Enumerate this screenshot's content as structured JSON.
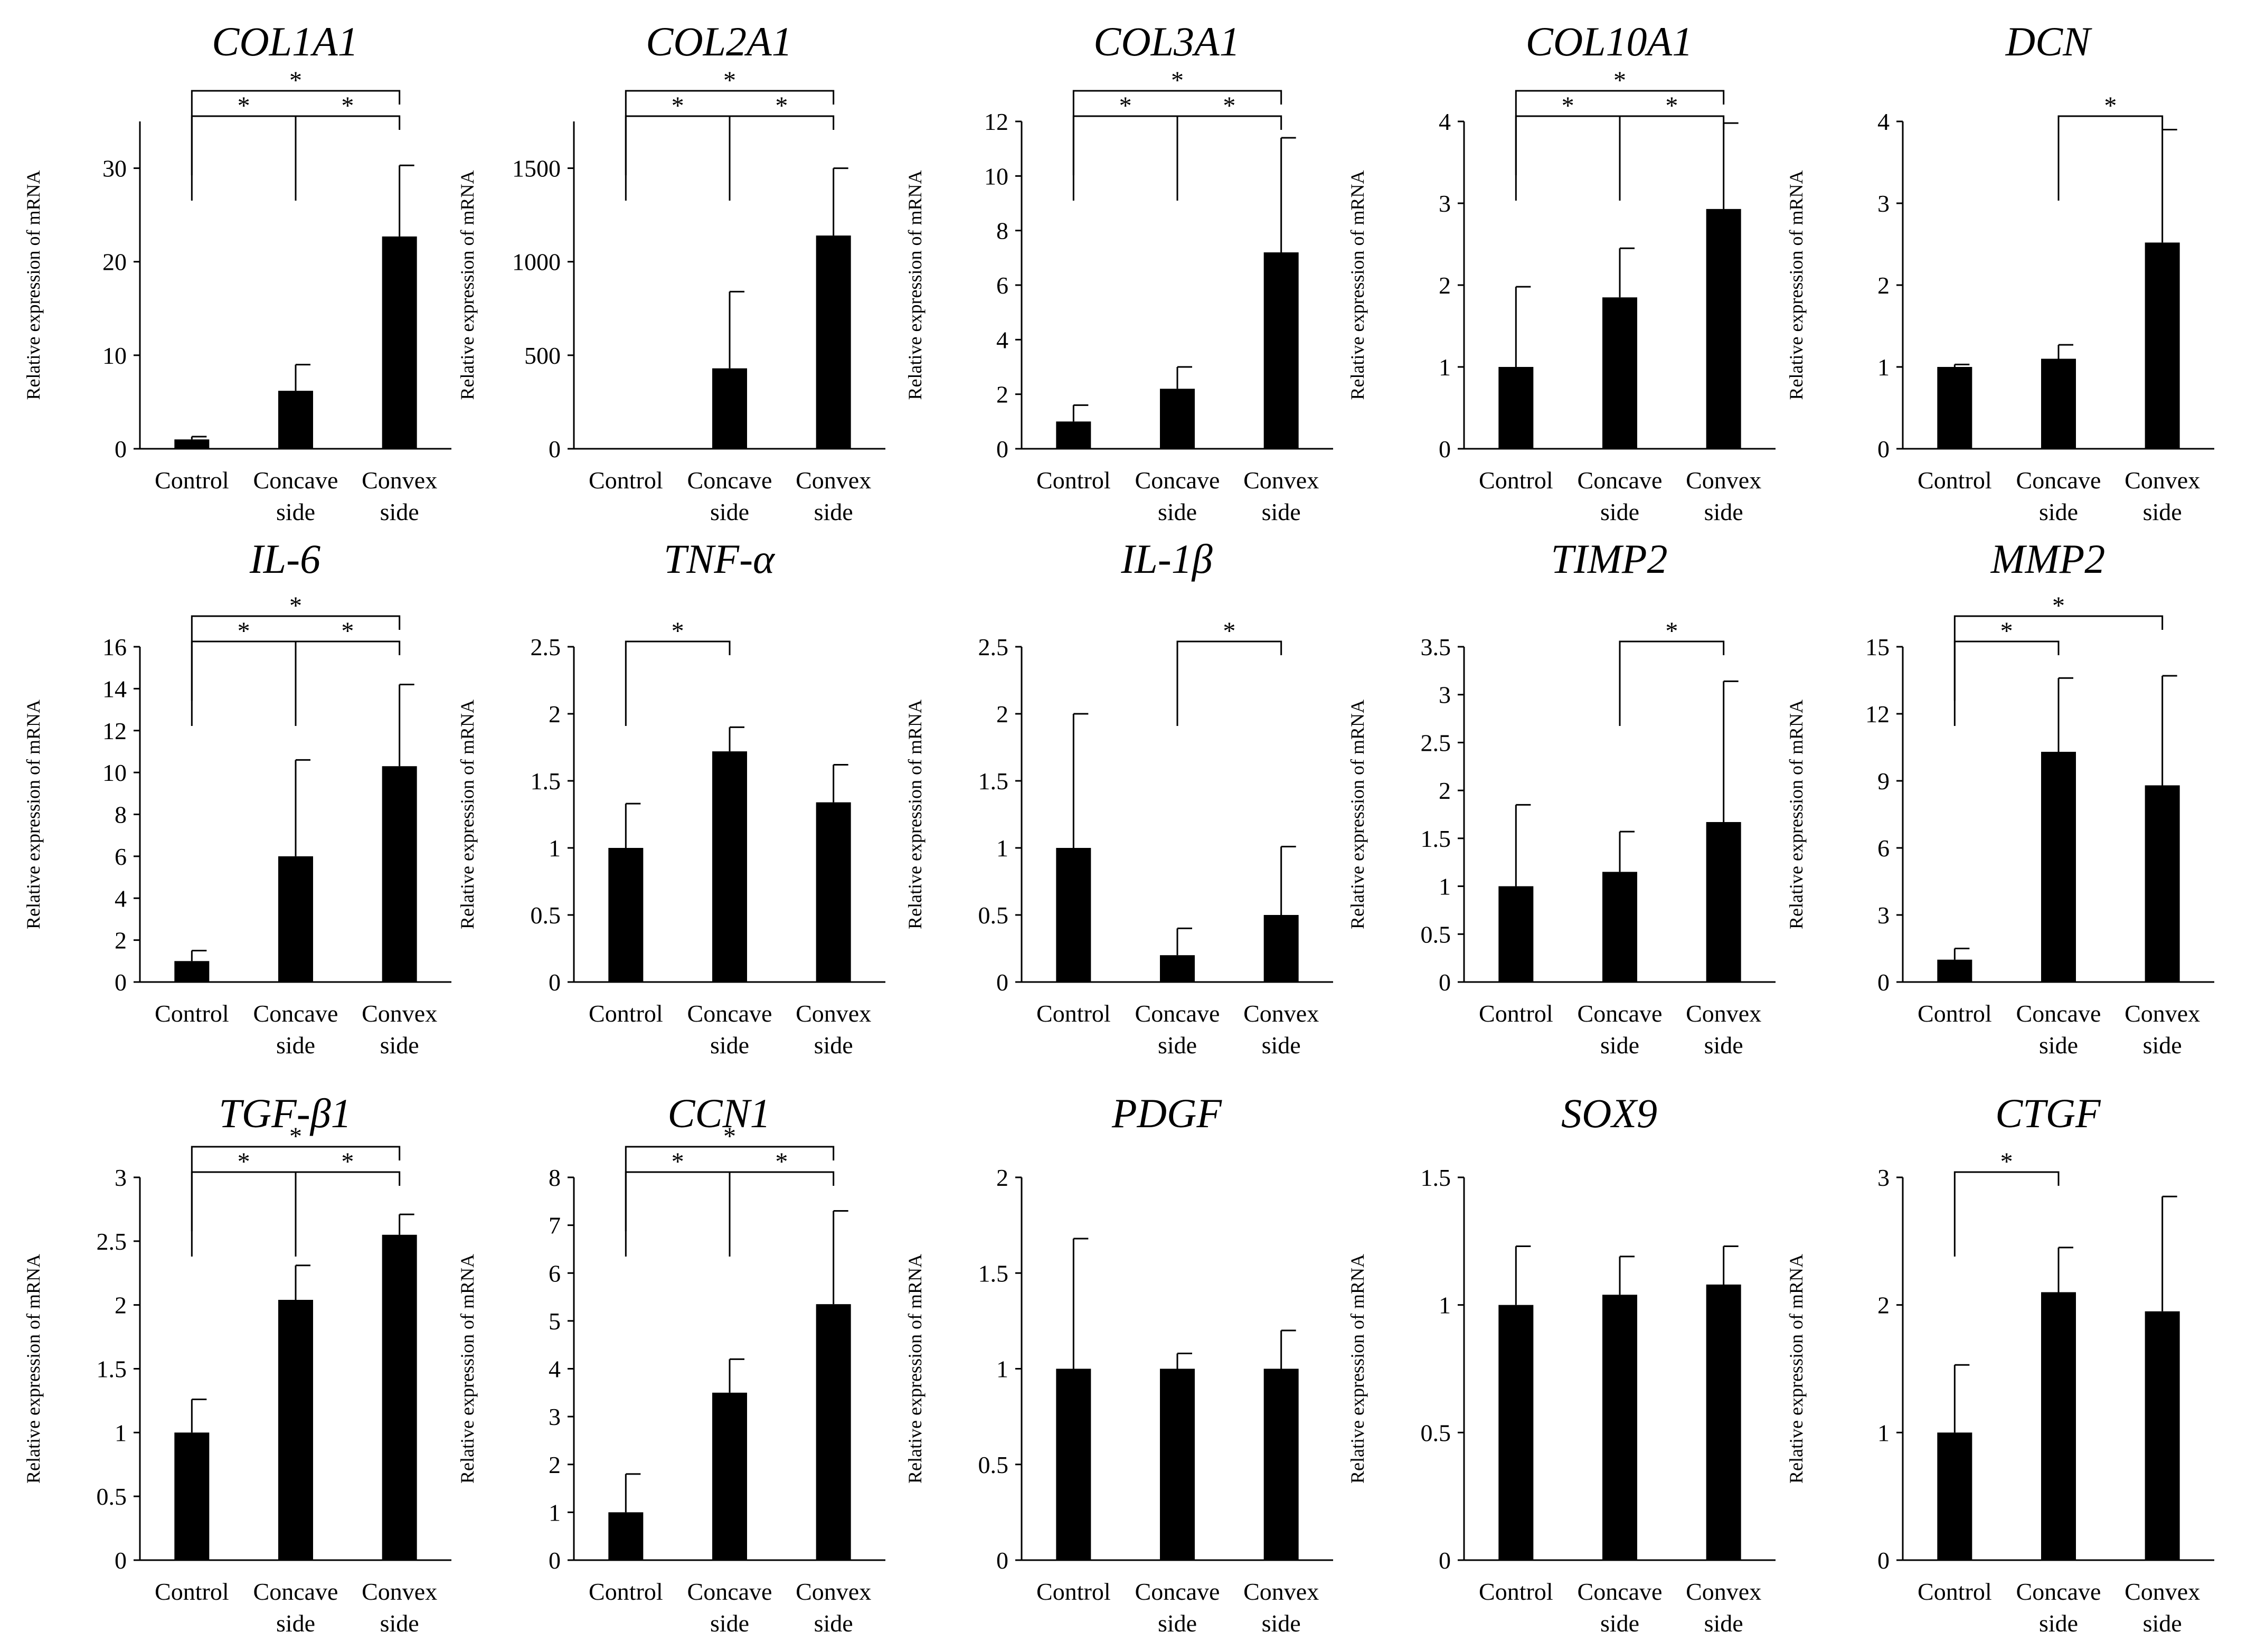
{
  "figure": {
    "ylabel": "Relative expression of mRNA",
    "categories": [
      [
        "Control"
      ],
      [
        "Concave",
        "side"
      ],
      [
        "Convex",
        "side"
      ]
    ]
  },
  "chart_data": [
    {
      "type": "bar",
      "title": "COL1A1",
      "categories": [
        "Control",
        "Concave side",
        "Convex side"
      ],
      "values": [
        1,
        6.2,
        22.7
      ],
      "errors": [
        0.3,
        2.8,
        7.6
      ],
      "ylim": [
        0,
        35
      ],
      "yticks": [
        0,
        10,
        20,
        30
      ],
      "ylabel": "Relative expression of mRNA",
      "significance": [
        {
          "from": 0,
          "to": 1,
          "label": "*"
        },
        {
          "from": 1,
          "to": 2,
          "label": "*"
        },
        {
          "from": 0,
          "to": 2,
          "label": "*"
        }
      ]
    },
    {
      "type": "bar",
      "title": "COL2A1",
      "categories": [
        "Control",
        "Concave side",
        "Convex side"
      ],
      "values": [
        1,
        430,
        1140
      ],
      "errors": [
        0,
        410,
        360
      ],
      "ylim": [
        0,
        1750
      ],
      "yticks": [
        0,
        500,
        1000,
        1500
      ],
      "ylabel": "Relative expression of mRNA",
      "significance": [
        {
          "from": 0,
          "to": 1,
          "label": "*"
        },
        {
          "from": 1,
          "to": 2,
          "label": "*"
        },
        {
          "from": 0,
          "to": 2,
          "label": "*"
        }
      ]
    },
    {
      "type": "bar",
      "title": "COL3A1",
      "categories": [
        "Control",
        "Concave side",
        "Convex side"
      ],
      "values": [
        1,
        2.2,
        7.2
      ],
      "errors": [
        0.6,
        0.8,
        4.2
      ],
      "ylim": [
        0,
        12
      ],
      "yticks": [
        0,
        2,
        4,
        6,
        8,
        10,
        12
      ],
      "ylabel": "Relative expression of mRNA",
      "significance": [
        {
          "from": 0,
          "to": 1,
          "label": "*"
        },
        {
          "from": 1,
          "to": 2,
          "label": "*"
        },
        {
          "from": 0,
          "to": 2,
          "label": "*"
        }
      ]
    },
    {
      "type": "bar",
      "title": "COL10A1",
      "categories": [
        "Control",
        "Concave side",
        "Convex side"
      ],
      "values": [
        1,
        1.85,
        2.93
      ],
      "errors": [
        0.98,
        0.6,
        1.05
      ],
      "ylim": [
        0,
        4
      ],
      "yticks": [
        0,
        1,
        2,
        3,
        4
      ],
      "ylabel": "Relative expression of mRNA",
      "significance": [
        {
          "from": 0,
          "to": 1,
          "label": "*"
        },
        {
          "from": 1,
          "to": 2,
          "label": "*"
        },
        {
          "from": 0,
          "to": 2,
          "label": "*"
        }
      ]
    },
    {
      "type": "bar",
      "title": "DCN",
      "categories": [
        "Control",
        "Concave side",
        "Convex side"
      ],
      "values": [
        1,
        1.1,
        2.52
      ],
      "errors": [
        0.03,
        0.17,
        1.38
      ],
      "ylim": [
        0,
        4
      ],
      "yticks": [
        0,
        1,
        2,
        3,
        4
      ],
      "ylabel": "Relative expression of mRNA",
      "significance": [
        {
          "from": 1,
          "to": 2,
          "label": "*"
        }
      ]
    },
    {
      "type": "bar",
      "title": "IL-6",
      "categories": [
        "Control",
        "Concave side",
        "Convex side"
      ],
      "values": [
        1,
        6,
        10.3
      ],
      "errors": [
        0.5,
        4.6,
        3.9
      ],
      "ylim": [
        0,
        16
      ],
      "yticks": [
        0,
        2,
        4,
        6,
        8,
        10,
        12,
        14,
        16
      ],
      "ylabel": "Relative expression of mRNA",
      "significance": [
        {
          "from": 0,
          "to": 1,
          "label": "*"
        },
        {
          "from": 1,
          "to": 2,
          "label": "*"
        },
        {
          "from": 0,
          "to": 2,
          "label": "*"
        }
      ]
    },
    {
      "type": "bar",
      "title": "TNF-α",
      "categories": [
        "Control",
        "Concave side",
        "Convex side"
      ],
      "values": [
        1,
        1.72,
        1.34
      ],
      "errors": [
        0.33,
        0.18,
        0.28
      ],
      "ylim": [
        0,
        2.5
      ],
      "yticks": [
        0,
        0.5,
        1,
        1.5,
        2,
        2.5
      ],
      "ylabel": "Relative expression of mRNA",
      "significance": [
        {
          "from": 0,
          "to": 1,
          "label": "*"
        }
      ]
    },
    {
      "type": "bar",
      "title": "IL-1β",
      "categories": [
        "Control",
        "Concave side",
        "Convex side"
      ],
      "values": [
        1,
        0.2,
        0.5
      ],
      "errors": [
        1,
        0.2,
        0.51
      ],
      "ylim": [
        0,
        2.5
      ],
      "yticks": [
        0,
        0.5,
        1,
        1.5,
        2,
        2.5
      ],
      "ylabel": "Relative expression of mRNA",
      "significance": [
        {
          "from": 1,
          "to": 2,
          "label": "*"
        }
      ]
    },
    {
      "type": "bar",
      "title": "TIMP2",
      "categories": [
        "Control",
        "Concave side",
        "Convex side"
      ],
      "values": [
        1,
        1.15,
        1.67
      ],
      "errors": [
        0.85,
        0.42,
        1.47
      ],
      "ylim": [
        0,
        3.5
      ],
      "yticks": [
        0,
        0.5,
        1,
        1.5,
        2,
        2.5,
        3,
        3.5
      ],
      "ylabel": "Relative expression of mRNA",
      "significance": [
        {
          "from": 1,
          "to": 2,
          "label": "*"
        }
      ]
    },
    {
      "type": "bar",
      "title": "MMP2",
      "categories": [
        "Control",
        "Concave side",
        "Convex side"
      ],
      "values": [
        1,
        10.3,
        8.8
      ],
      "errors": [
        0.5,
        3.3,
        4.9
      ],
      "ylim": [
        0,
        15
      ],
      "yticks": [
        0,
        3,
        6,
        9,
        12,
        15
      ],
      "ylabel": "Relative expression of mRNA",
      "significance": [
        {
          "from": 0,
          "to": 1,
          "label": "*"
        },
        {
          "from": 0,
          "to": 2,
          "label": "*"
        }
      ]
    },
    {
      "type": "bar",
      "title": "TGF-β1",
      "categories": [
        "Control",
        "Concave side",
        "Convex side"
      ],
      "values": [
        1,
        2.04,
        2.55
      ],
      "errors": [
        0.26,
        0.27,
        0.16
      ],
      "ylim": [
        0,
        3
      ],
      "yticks": [
        0,
        0.5,
        1,
        1.5,
        2,
        2.5,
        3
      ],
      "ylabel": "Relative expression of mRNA",
      "significance": [
        {
          "from": 0,
          "to": 1,
          "label": "*"
        },
        {
          "from": 1,
          "to": 2,
          "label": "*"
        },
        {
          "from": 0,
          "to": 2,
          "label": "*"
        }
      ]
    },
    {
      "type": "bar",
      "title": "CCN1",
      "categories": [
        "Control",
        "Concave side",
        "Convex side"
      ],
      "values": [
        1,
        3.5,
        5.35
      ],
      "errors": [
        0.8,
        0.7,
        1.95
      ],
      "ylim": [
        0,
        8
      ],
      "yticks": [
        0,
        1,
        2,
        3,
        4,
        5,
        6,
        7,
        8
      ],
      "ylabel": "Relative expression of mRNA",
      "significance": [
        {
          "from": 0,
          "to": 1,
          "label": "*"
        },
        {
          "from": 1,
          "to": 2,
          "label": "*"
        },
        {
          "from": 0,
          "to": 2,
          "label": "*"
        }
      ]
    },
    {
      "type": "bar",
      "title": "PDGF",
      "categories": [
        "Control",
        "Concave side",
        "Convex side"
      ],
      "values": [
        1,
        1,
        1
      ],
      "errors": [
        0.68,
        0.08,
        0.2
      ],
      "ylim": [
        0,
        2
      ],
      "yticks": [
        0,
        0.5,
        1,
        1.5,
        2
      ],
      "ylabel": "Relative expression of mRNA",
      "significance": []
    },
    {
      "type": "bar",
      "title": "SOX9",
      "categories": [
        "Control",
        "Concave side",
        "Convex side"
      ],
      "values": [
        1,
        1.04,
        1.08
      ],
      "errors": [
        0.23,
        0.15,
        0.15
      ],
      "ylim": [
        0,
        1.5
      ],
      "yticks": [
        0,
        0.5,
        1,
        1.5
      ],
      "ylabel": "Relative expression of mRNA",
      "significance": []
    },
    {
      "type": "bar",
      "title": "CTGF",
      "categories": [
        "Control",
        "Concave side",
        "Convex side"
      ],
      "values": [
        1,
        2.1,
        1.95
      ],
      "errors": [
        0.53,
        0.35,
        0.9
      ],
      "ylim": [
        0,
        3
      ],
      "yticks": [
        0,
        1,
        2,
        3
      ],
      "ylabel": "Relative expression of mRNA",
      "significance": [
        {
          "from": 0,
          "to": 1,
          "label": "*"
        }
      ]
    }
  ]
}
